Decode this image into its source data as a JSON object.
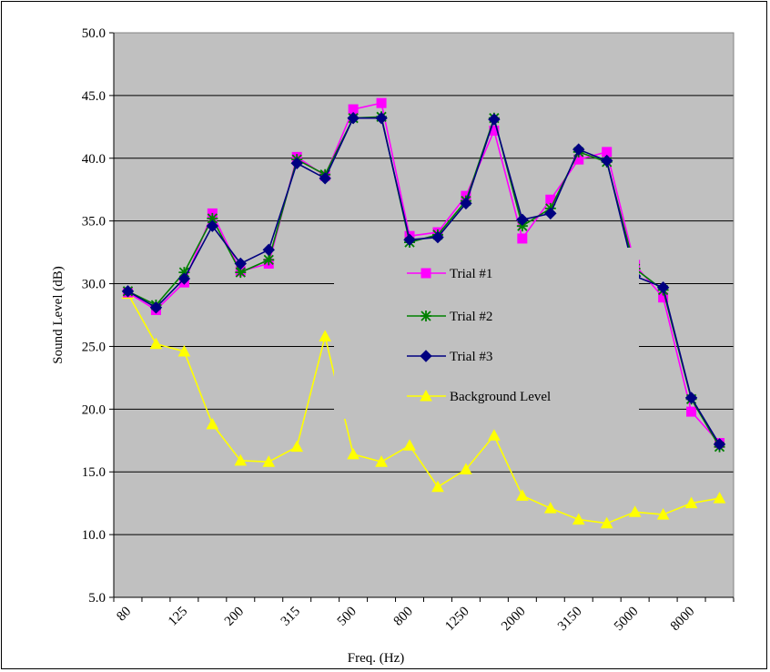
{
  "chart_data": {
    "type": "line",
    "xlabel": "Freq. (Hz)",
    "ylabel": "Sound Level (dB)",
    "ylim": [
      5.0,
      50.0
    ],
    "ytick_step": 5.0,
    "ytick_labels": [
      "5.0",
      "10.0",
      "15.0",
      "20.0",
      "25.0",
      "30.0",
      "35.0",
      "40.0",
      "45.0",
      "50.0"
    ],
    "categories": [
      "80",
      "100",
      "125",
      "160",
      "200",
      "250",
      "315",
      "400",
      "500",
      "630",
      "800",
      "1000",
      "1250",
      "1600",
      "2000",
      "2500",
      "3150",
      "4000",
      "5000",
      "6300",
      "8000",
      "10000"
    ],
    "x_tick_labels": [
      "80",
      "",
      "125",
      "",
      "200",
      "",
      "315",
      "",
      "500",
      "",
      "800",
      "",
      "1250",
      "",
      "2000",
      "",
      "3150",
      "",
      "5000",
      "",
      "8000",
      ""
    ],
    "grid": true,
    "legend_position": "center",
    "series": [
      {
        "name": "Trial #1",
        "color": "#ff00ff",
        "marker": "square",
        "values": [
          29.3,
          27.9,
          30.1,
          35.6,
          31.0,
          31.6,
          40.1,
          38.6,
          43.9,
          44.4,
          33.8,
          34.1,
          37.0,
          42.2,
          33.6,
          36.7,
          39.9,
          40.5,
          31.5,
          28.9,
          19.8,
          17.3
        ]
      },
      {
        "name": "Trial #2",
        "color": "#008000",
        "marker": "asterisk",
        "values": [
          29.4,
          28.3,
          30.9,
          35.2,
          30.9,
          31.9,
          39.9,
          38.7,
          43.2,
          43.3,
          33.3,
          33.9,
          36.6,
          43.2,
          34.6,
          36.0,
          40.5,
          39.7,
          31.2,
          29.5,
          20.8,
          17.0
        ]
      },
      {
        "name": "Trial #3",
        "color": "#000080",
        "marker": "diamond",
        "values": [
          29.4,
          28.1,
          30.4,
          34.6,
          31.6,
          32.7,
          39.6,
          38.4,
          43.2,
          43.2,
          33.5,
          33.7,
          36.4,
          43.1,
          35.1,
          35.6,
          40.7,
          39.8,
          30.6,
          29.7,
          20.9,
          17.2
        ]
      },
      {
        "name": "Background Level",
        "color": "#ffff00",
        "marker": "triangle",
        "values": [
          29.2,
          25.2,
          24.6,
          18.8,
          15.9,
          15.8,
          17.0,
          25.8,
          16.4,
          15.8,
          17.1,
          13.8,
          15.2,
          17.9,
          13.1,
          12.1,
          11.2,
          10.9,
          11.8,
          11.6,
          12.5,
          12.9
        ]
      }
    ]
  }
}
